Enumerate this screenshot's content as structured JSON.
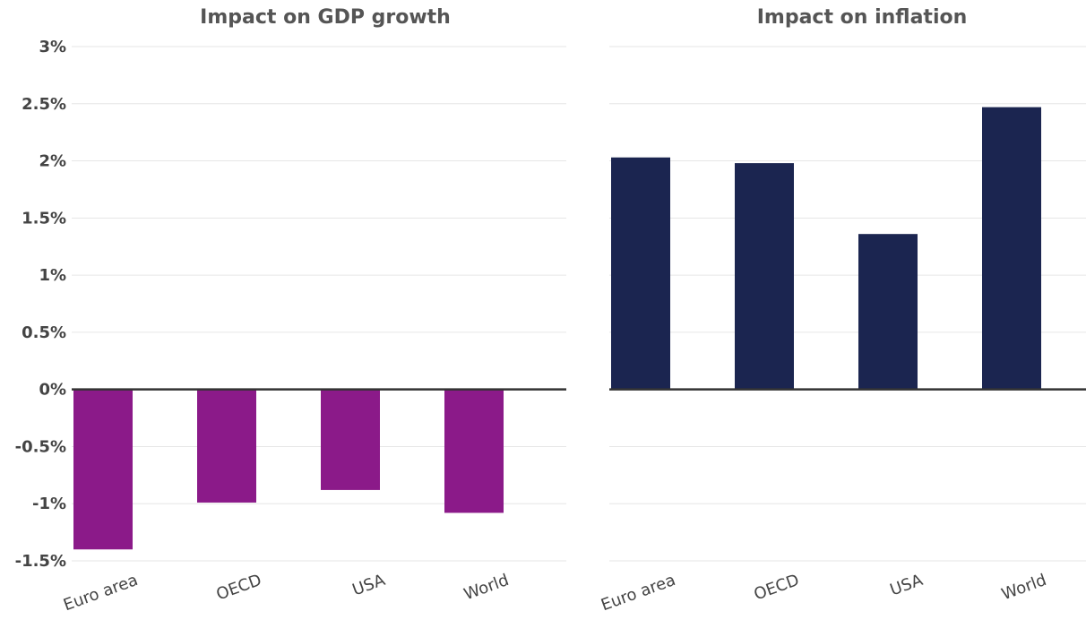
{
  "chart_data": [
    {
      "type": "bar",
      "title": "Impact on GDP growth",
      "categories": [
        "Euro area",
        "OECD",
        "USA",
        "World"
      ],
      "values": [
        -1.4,
        -0.99,
        -0.88,
        -1.08
      ],
      "ylim": [
        -1.5,
        3
      ],
      "yticks": [
        "3%",
        "2.5%",
        "2%",
        "1.5%",
        "1%",
        "0.5%",
        "0%",
        "-0.5%",
        "-1%",
        "-1.5%"
      ],
      "ytick_values": [
        3,
        2.5,
        2,
        1.5,
        1,
        0.5,
        0,
        -0.5,
        -1,
        -1.5
      ],
      "color": "#8b1a89",
      "grid": true
    },
    {
      "type": "bar",
      "title": "Impact on inflation",
      "categories": [
        "Euro area",
        "OECD",
        "USA",
        "World"
      ],
      "values": [
        2.03,
        1.98,
        1.36,
        2.47
      ],
      "ylim": [
        -1.5,
        3
      ],
      "color": "#1b2550",
      "grid": true
    }
  ]
}
